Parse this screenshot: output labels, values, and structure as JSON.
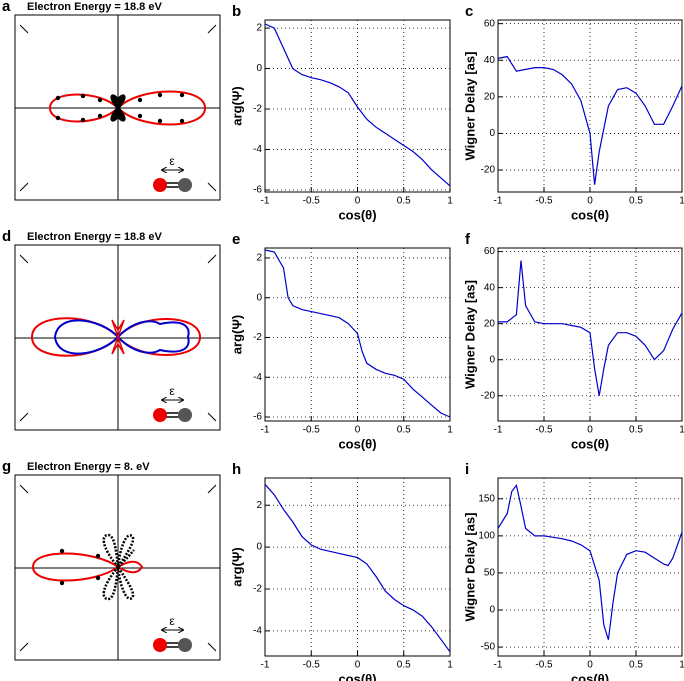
{
  "panels": [
    {
      "label": "a",
      "title": "Electron Energy = 18.8 eV",
      "field": "ε"
    },
    {
      "label": "d",
      "title": "Electron Energy = 18.8 eV",
      "field": "ε"
    },
    {
      "label": "g",
      "title": "Electron Energy = 8. eV",
      "field": "ε"
    }
  ],
  "chart_data": [
    {
      "type": "line",
      "label": "b",
      "xlabel": "cos(θ)",
      "ylabel": "arg(Ψ)",
      "color": "#0000cc",
      "grid": true,
      "xlim": [
        -1,
        1
      ],
      "xticks": [
        -1,
        -0.5,
        0,
        0.5,
        1
      ],
      "ylim": [
        -6.1,
        2.4
      ],
      "yticks": [
        -6,
        -4,
        -2,
        0,
        2
      ],
      "x": [
        -1,
        -0.9,
        -0.8,
        -0.7,
        -0.6,
        -0.5,
        -0.4,
        -0.3,
        -0.2,
        -0.1,
        0,
        0.1,
        0.2,
        0.3,
        0.4,
        0.5,
        0.6,
        0.7,
        0.8,
        0.9,
        1
      ],
      "values": [
        2.2,
        2.0,
        1.0,
        0,
        -0.3,
        -0.45,
        -0.55,
        -0.7,
        -0.9,
        -1.2,
        -1.9,
        -2.5,
        -2.9,
        -3.2,
        -3.5,
        -3.8,
        -4.1,
        -4.5,
        -5.0,
        -5.4,
        -5.8
      ]
    },
    {
      "type": "line",
      "label": "c",
      "xlabel": "cos(θ)",
      "ylabel": "Wigner Delay [as]",
      "color": "#0000cc",
      "grid": true,
      "xlim": [
        -1,
        1
      ],
      "xticks": [
        -1,
        -0.5,
        0,
        0.5,
        1
      ],
      "ylim": [
        -32,
        62
      ],
      "yticks": [
        -20,
        0,
        20,
        40,
        60
      ],
      "x": [
        -1,
        -0.9,
        -0.8,
        -0.7,
        -0.6,
        -0.5,
        -0.4,
        -0.3,
        -0.2,
        -0.1,
        0,
        0.05,
        0.1,
        0.2,
        0.3,
        0.4,
        0.5,
        0.6,
        0.7,
        0.8,
        0.9,
        1
      ],
      "values": [
        41,
        42,
        34,
        35,
        36,
        36,
        35,
        32,
        27,
        18,
        0,
        -28,
        -10,
        15,
        24,
        25,
        22,
        15,
        5,
        5,
        15,
        26
      ]
    },
    {
      "type": "line",
      "label": "e",
      "xlabel": "cos(θ)",
      "ylabel": "arg(Ψ)",
      "color": "#0000cc",
      "grid": true,
      "xlim": [
        -1,
        1
      ],
      "xticks": [
        -1,
        -0.5,
        0,
        0.5,
        1
      ],
      "ylim": [
        -6.2,
        2.5
      ],
      "yticks": [
        -6,
        -4,
        -2,
        0,
        2
      ],
      "x": [
        -1,
        -0.9,
        -0.8,
        -0.75,
        -0.7,
        -0.6,
        -0.5,
        -0.4,
        -0.3,
        -0.2,
        -0.1,
        0,
        0.05,
        0.1,
        0.2,
        0.3,
        0.4,
        0.5,
        0.6,
        0.7,
        0.8,
        0.9,
        1
      ],
      "values": [
        2.4,
        2.3,
        1.5,
        0,
        -0.4,
        -0.6,
        -0.7,
        -0.8,
        -0.9,
        -1.0,
        -1.3,
        -1.8,
        -2.7,
        -3.3,
        -3.6,
        -3.8,
        -3.9,
        -4.1,
        -4.6,
        -5.0,
        -5.4,
        -5.8,
        -6.0
      ]
    },
    {
      "type": "line",
      "label": "f",
      "xlabel": "cos(θ)",
      "ylabel": "Wigner Delay [as]",
      "color": "#0000cc",
      "grid": true,
      "xlim": [
        -1,
        1
      ],
      "xticks": [
        -1,
        -0.5,
        0,
        0.5,
        1
      ],
      "ylim": [
        -34,
        62
      ],
      "yticks": [
        -20,
        0,
        20,
        40,
        60
      ],
      "x": [
        -1,
        -0.9,
        -0.8,
        -0.75,
        -0.7,
        -0.6,
        -0.5,
        -0.3,
        -0.2,
        -0.1,
        0,
        0.05,
        0.1,
        0.15,
        0.2,
        0.3,
        0.4,
        0.5,
        0.6,
        0.7,
        0.8,
        0.9,
        1
      ],
      "values": [
        21,
        21,
        25,
        55,
        30,
        21,
        20,
        20,
        19,
        18,
        15,
        -5,
        -20,
        -5,
        8,
        15,
        15,
        13,
        8,
        0,
        5,
        17,
        26
      ]
    },
    {
      "type": "line",
      "label": "h",
      "xlabel": "cos(θ)",
      "ylabel": "arg(Ψ)",
      "color": "#0000cc",
      "grid": true,
      "xlim": [
        -1,
        1
      ],
      "xticks": [
        -1,
        -0.5,
        0,
        0.5,
        1
      ],
      "ylim": [
        -5.2,
        3.3
      ],
      "yticks": [
        -4,
        -2,
        0,
        2
      ],
      "x": [
        -1,
        -0.9,
        -0.8,
        -0.7,
        -0.6,
        -0.5,
        -0.4,
        -0.3,
        -0.2,
        -0.1,
        0,
        0.1,
        0.2,
        0.3,
        0.4,
        0.5,
        0.6,
        0.7,
        0.8,
        0.9,
        1
      ],
      "values": [
        3,
        2.5,
        1.8,
        1.2,
        0.5,
        0.1,
        -0.1,
        -0.2,
        -0.3,
        -0.4,
        -0.5,
        -0.8,
        -1.4,
        -2.1,
        -2.5,
        -2.8,
        -3.0,
        -3.3,
        -3.8,
        -4.4,
        -5.0
      ]
    },
    {
      "type": "line",
      "label": "i",
      "xlabel": "cos(θ)",
      "ylabel": "Wigner Delay [as]",
      "color": "#0000cc",
      "grid": true,
      "xlim": [
        -1,
        1
      ],
      "xticks": [
        -1,
        -0.5,
        0,
        0.5,
        1
      ],
      "ylim": [
        -62,
        178
      ],
      "yticks": [
        -50,
        0,
        50,
        100,
        150
      ],
      "x": [
        -1,
        -0.9,
        -0.85,
        -0.8,
        -0.75,
        -0.7,
        -0.6,
        -0.5,
        -0.4,
        -0.3,
        -0.2,
        -0.1,
        0,
        0.1,
        0.15,
        0.2,
        0.25,
        0.3,
        0.4,
        0.5,
        0.6,
        0.7,
        0.8,
        0.85,
        0.9,
        1
      ],
      "values": [
        110,
        130,
        160,
        168,
        140,
        110,
        100,
        100,
        98,
        96,
        93,
        88,
        80,
        40,
        -20,
        -40,
        10,
        50,
        75,
        80,
        78,
        70,
        62,
        60,
        70,
        105
      ]
    }
  ]
}
